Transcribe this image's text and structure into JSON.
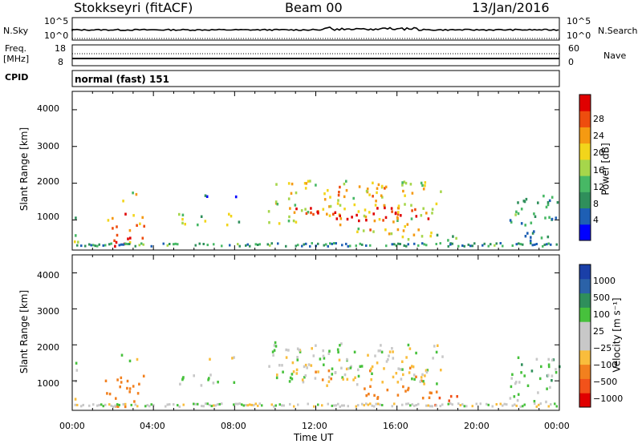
{
  "header": {
    "station": "Stokkseyri (fitACF)",
    "beam": "Beam 00",
    "date": "13/Jan/2016"
  },
  "top_panels": {
    "nsky_label": "N.Sky",
    "nsearch_label": "N.Search",
    "nsky_ticks": [
      "10^5",
      "10^0"
    ],
    "nsearch_ticks": [
      "10^5",
      "10^0"
    ],
    "freq_label_1": "Freq.",
    "freq_label_2": "[MHz]",
    "freq_ticks": [
      "18",
      "8"
    ],
    "nave_label": "Nave",
    "nave_ticks": [
      "60",
      "0"
    ],
    "cpid_label": "CPID",
    "cpid_value": "normal (fast) 151"
  },
  "colors": {
    "power": [
      "#0000ff",
      "#1e5fb4",
      "#2f8f5b",
      "#47b865",
      "#a6d64b",
      "#f2d51b",
      "#f59a12",
      "#ee4d0e",
      "#e00000"
    ],
    "velocity": [
      "#e00000",
      "#f2521a",
      "#f2801e",
      "#f9bd3c",
      "#c8c8c8",
      "#c8c8c8",
      "#47c13c",
      "#2f8f5b",
      "#2b62a8",
      "#1a3fa8"
    ]
  },
  "chart_data": [
    {
      "type": "heatmap",
      "title": "Power",
      "ylabel": "Slant Range [km]",
      "yticks": [
        "1000",
        "2000",
        "3000",
        "4000"
      ],
      "ylim": [
        180,
        4500
      ],
      "xticks": [
        "00:00",
        "04:00",
        "08:00",
        "12:00",
        "16:00",
        "20:00",
        "00:00"
      ],
      "colorbar_label": "Power [dB]",
      "colorbar_ticks": [
        "4",
        "8",
        "12",
        "16",
        "20",
        "24",
        "28"
      ],
      "colorbar_range": [
        0,
        30
      ]
    },
    {
      "type": "heatmap",
      "title": "Velocity",
      "ylabel": "Slant Range [km]",
      "yticks": [
        "1000",
        "2000",
        "3000",
        "4000"
      ],
      "ylim": [
        180,
        4500
      ],
      "xticks": [
        "00:00",
        "04:00",
        "08:00",
        "12:00",
        "16:00",
        "20:00",
        "00:00"
      ],
      "xlabel": "Time UT",
      "colorbar_label": "Velocity [m s⁻¹]",
      "colorbar_ticks": [
        "1000",
        "500",
        "100",
        "25",
        "−25",
        "−100",
        "−500",
        "−1000"
      ]
    }
  ]
}
